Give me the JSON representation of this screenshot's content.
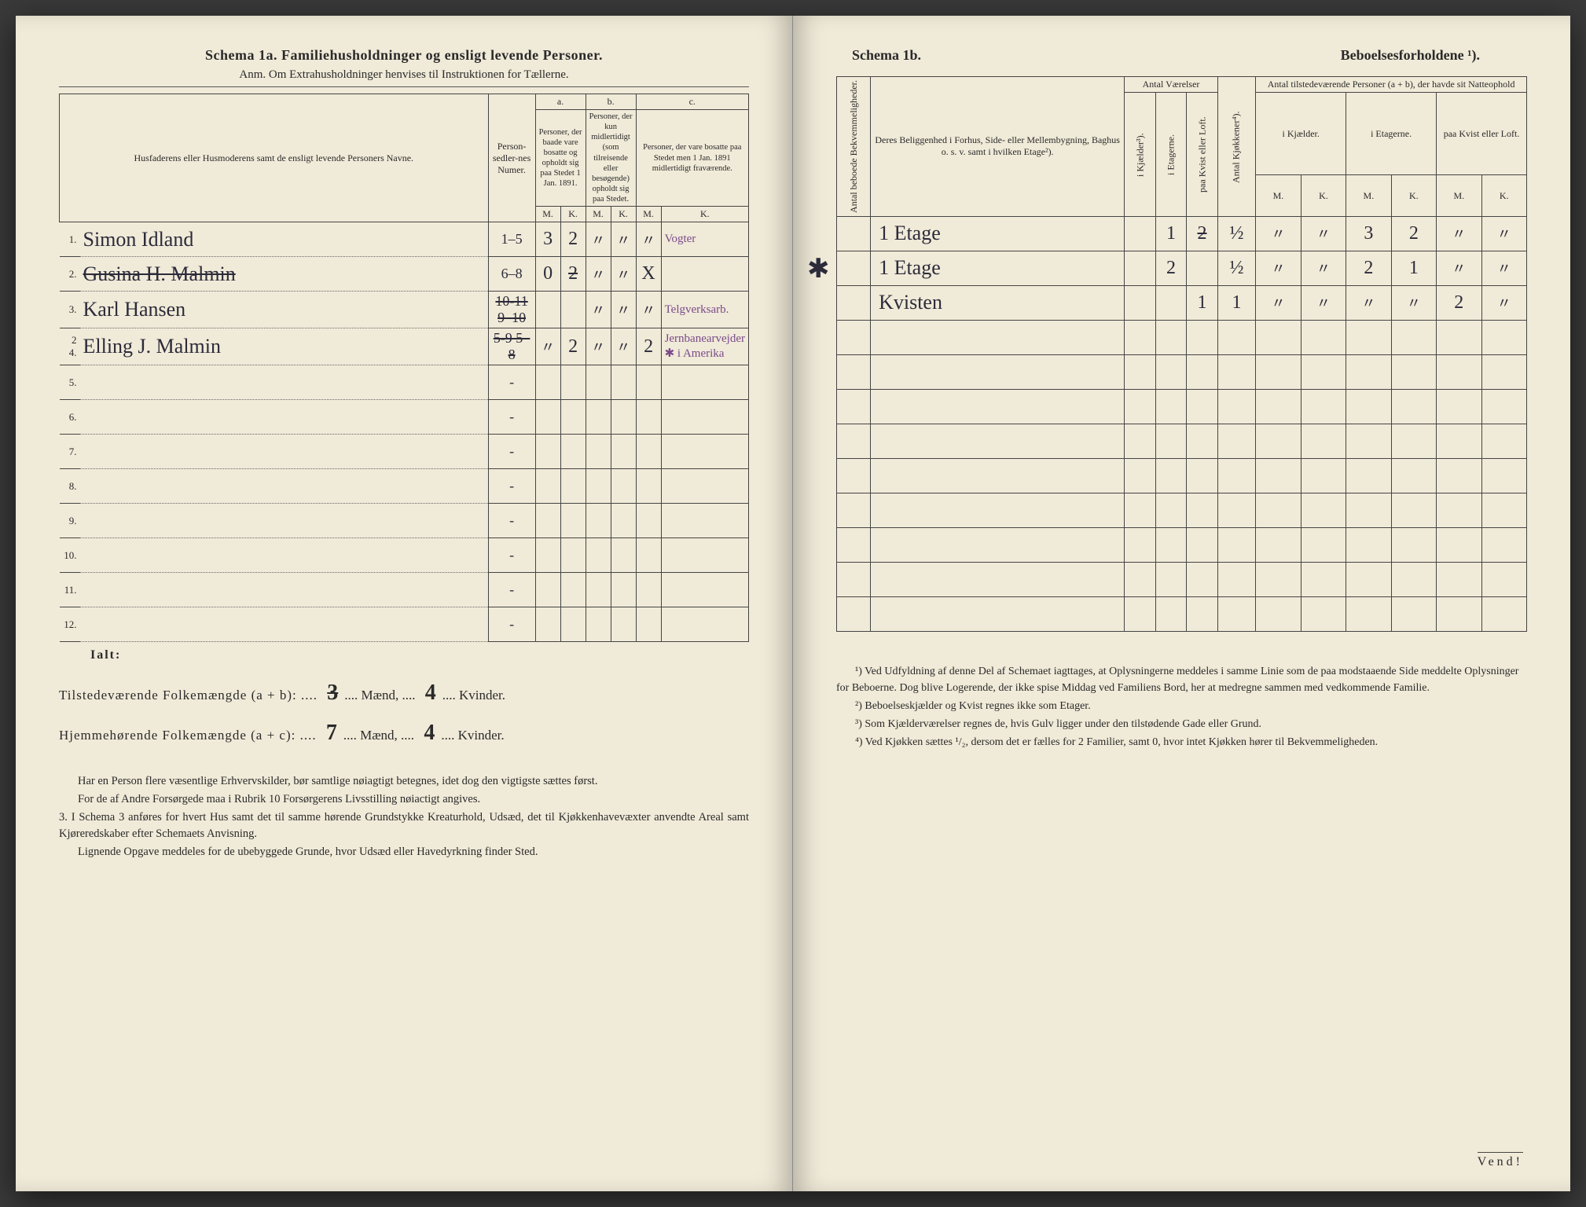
{
  "left": {
    "title": "Schema 1a.   Familiehusholdninger og ensligt levende Personer.",
    "subtitle": "Anm. Om Extrahusholdninger henvises til Instruktionen for Tællerne.",
    "headers": {
      "names": "Husfaderens eller Husmoderens samt de ensligt levende Personers Navne.",
      "numer": "Person-sedler-nes Numer.",
      "a_label": "a.",
      "a_text": "Personer, der baade vare bosatte og opholdt sig paa Stedet 1 Jan. 1891.",
      "b_label": "b.",
      "b_text": "Personer, der kun midlertidigt (som tilreisende eller besøgende) opholdt sig paa Stedet.",
      "c_label": "c.",
      "c_text": "Personer, der vare bosatte paa Stedet men 1 Jan. 1891 midlertidigt fraværende.",
      "m": "M.",
      "k": "K."
    },
    "rows": [
      {
        "n": "1.",
        "name": "Simon Idland",
        "numer": "1–5",
        "am": "3",
        "ak": "2",
        "bm": "\"",
        "bk": "\"",
        "cm": "\"",
        "ck": "Vogter",
        "purple": true
      },
      {
        "n": "2.",
        "name": "Gusina H. Malmin",
        "name_strike": true,
        "numer": "6–8",
        "am": "0",
        "ak": "2",
        "ak_strike": true,
        "bm": "\"",
        "bk": "\"",
        "cm": "X",
        "ck": ""
      },
      {
        "n": "3.",
        "name": "Karl Hansen",
        "numer": "10-11 9–10",
        "numer_strike": true,
        "am": "",
        "ak": "",
        "bm": "\"",
        "bk": "\"",
        "cm": "\"",
        "ck": "Telgverksarb.",
        "purple": true
      },
      {
        "n": "2 4.",
        "name": "Elling J. Malmin",
        "numer": "5-9 5–8",
        "numer_strike": true,
        "am": "\"",
        "ak": "2",
        "bm": "\"",
        "bk": "\"",
        "cm": "2",
        "ck": "Jernbanearvejder ✱ i Amerika",
        "purple": true
      },
      {
        "n": "5.",
        "name": "",
        "numer": "-"
      },
      {
        "n": "6.",
        "name": "",
        "numer": "-"
      },
      {
        "n": "7.",
        "name": "",
        "numer": "-"
      },
      {
        "n": "8.",
        "name": "",
        "numer": "-"
      },
      {
        "n": "9.",
        "name": "",
        "numer": "-"
      },
      {
        "n": "10.",
        "name": "",
        "numer": "-"
      },
      {
        "n": "11.",
        "name": "",
        "numer": "-"
      },
      {
        "n": "12.",
        "name": "",
        "numer": "-"
      }
    ],
    "ialt": "Ialt:",
    "tot1_label": "Tilstedeværende Folkemængde (a + b): ....",
    "tot1_m": "3",
    "tot1_m2": "Mænd, ....",
    "tot1_k": "4",
    "tot1_k2": "Kvinder.",
    "tot2_label": "Hjemmehørende Folkemængde (a + c): ....",
    "tot2_m": "7",
    "tot2_m2": "Mænd, ....",
    "tot2_k": "4",
    "tot2_k2": "Kvinder.",
    "notes": [
      "Har en Person flere væsentlige Erhvervskilder, bør samtlige nøiagtigt betegnes, idet dog den vigtigste sættes først.",
      "For de af Andre Forsørgede maa i Rubrik 10 Forsørgerens Livsstilling nøiactigt angives.",
      "3. I Schema 3 anføres for hvert Hus samt det til samme hørende Grundstykke Kreaturhold, Udsæd, det til Kjøkkenhavevæxter anvendte Areal samt Kjøreredskaber efter Schemaets Anvisning.",
      "Lignende Opgave meddeles for de ubebyggede Grunde, hvor Udsæd eller Havedyrkning finder Sted."
    ]
  },
  "right": {
    "title_l": "Schema 1b.",
    "title_r": "Beboelsesforholdene ¹).",
    "headers": {
      "bekv": "Antal beboede Bekvemmeligheder.",
      "belig": "Deres Beliggenhed i Forhus, Side- eller Mellembygning, Baghus o. s. v. samt i hvilken Etage²).",
      "vaer": "Antal Værelser",
      "kj": "i Kjælder³).",
      "et": "i Etagerne.",
      "kv": "paa Kvist eller Loft.",
      "kjok": "Antal Kjøkkener⁴).",
      "pers": "Antal tilstedeværende Personer (a + b), der havde sit Natteophold",
      "ikj": "i Kjælder.",
      "iet": "i Etagerne.",
      "pkv": "paa Kvist eller Loft.",
      "m": "M.",
      "k": "K."
    },
    "rows": [
      {
        "bekv": "",
        "belig": "1 Etage",
        "kj": "",
        "et": "1",
        "kv": "2",
        "kv_strike": true,
        "kjok": "½",
        "km": "\"",
        "kk": "\"",
        "em": "3",
        "ek": "2",
        "pm": "\"",
        "pk": "\""
      },
      {
        "bekv": "",
        "belig": "1 Etage",
        "kj": "",
        "et": "2",
        "kv": "",
        "kjok": "½",
        "km": "\"",
        "kk": "\"",
        "em": "2",
        "ek": "1",
        "pm": "\"",
        "pk": "\"",
        "ast": true
      },
      {
        "bekv": "",
        "belig": "Kvisten",
        "kj": "",
        "et": "",
        "kv": "1",
        "kjok": "1",
        "km": "\"",
        "kk": "\"",
        "em": "\"",
        "ek": "\"",
        "pm": "2",
        "pk": "\""
      },
      {},
      {},
      {},
      {},
      {},
      {},
      {},
      {},
      {}
    ],
    "footnotes": [
      "¹) Ved Udfyldning af denne Del af Schemaet iagttages, at Oplysningerne meddeles i samme Linie som de paa modstaaende Side meddelte Oplysninger for Beboerne. Dog blive Logerende, der ikke spise Middag ved Familiens Bord, her at medregne sammen med vedkommende Familie.",
      "²) Beboelseskjælder og Kvist regnes ikke som Etager.",
      "³) Som Kjælderværelser regnes de, hvis Gulv ligger under den tilstødende Gade eller Grund.",
      "⁴) Ved Kjøkken sættes ¹/₂, dersom det er fælles for 2 Familier, samt 0, hvor intet Kjøkken hører til Bekvemmeligheden."
    ],
    "vend": "Vend!"
  }
}
